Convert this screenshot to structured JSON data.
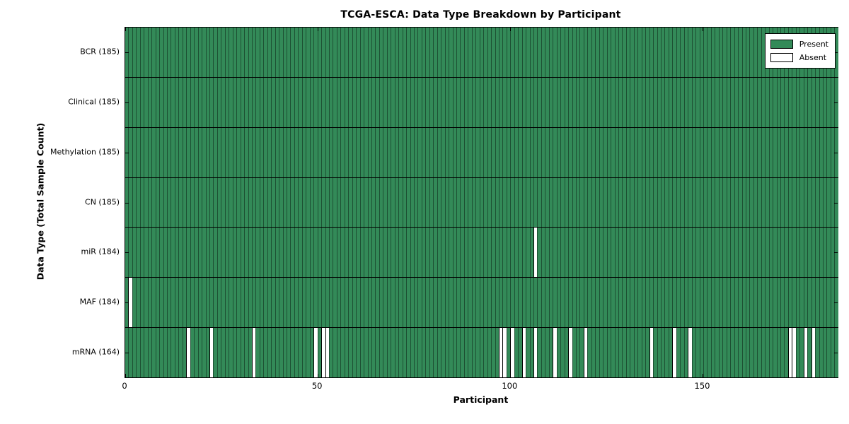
{
  "figure": {
    "title": "TCGA-ESCA: Data Type Breakdown by Participant",
    "xlabel": "Participant",
    "ylabel": "Data Type (Total Sample Count)"
  },
  "legend": {
    "items": [
      {
        "name": "present",
        "label": "Present",
        "color": "#338A58"
      },
      {
        "name": "absent",
        "label": "Absent",
        "color": "#FFFFFF"
      }
    ],
    "position": "upper right"
  },
  "chart_data": {
    "type": "heatmap",
    "title": "TCGA-ESCA: Data Type Breakdown by Participant",
    "xlabel": "Participant",
    "ylabel": "Data Type (Total Sample Count)",
    "n_participants": 185,
    "xlim": [
      0,
      185
    ],
    "x_ticks": [
      0,
      50,
      100,
      150
    ],
    "grid": false,
    "legend_entries": [
      "Present",
      "Absent"
    ],
    "legend_position": "upper right",
    "colors": {
      "present": "#338A58",
      "absent": "#FFFFFF",
      "cell_border": "rgba(0,0,0,0.42)",
      "row_divider": "#000000",
      "plot_border": "#000000"
    },
    "rows": [
      {
        "name": "BCR",
        "label": "BCR (185)",
        "present_count": 185,
        "absent_participants": []
      },
      {
        "name": "Clinical",
        "label": "Clinical (185)",
        "present_count": 185,
        "absent_participants": []
      },
      {
        "name": "Methylation",
        "label": "Methylation (185)",
        "present_count": 185,
        "absent_participants": []
      },
      {
        "name": "CN",
        "label": "CN (185)",
        "present_count": 185,
        "absent_participants": []
      },
      {
        "name": "miR",
        "label": "miR (184)",
        "present_count": 184,
        "absent_participants": [
          106
        ]
      },
      {
        "name": "MAF",
        "label": "MAF (184)",
        "present_count": 184,
        "absent_participants": [
          1
        ]
      },
      {
        "name": "mRNA",
        "label": "mRNA (164)",
        "present_count": 164,
        "absent_participants": [
          16,
          22,
          33,
          49,
          51,
          52,
          97,
          98,
          100,
          103,
          106,
          111,
          115,
          119,
          136,
          142,
          146,
          172,
          173,
          176,
          178
        ]
      }
    ]
  }
}
